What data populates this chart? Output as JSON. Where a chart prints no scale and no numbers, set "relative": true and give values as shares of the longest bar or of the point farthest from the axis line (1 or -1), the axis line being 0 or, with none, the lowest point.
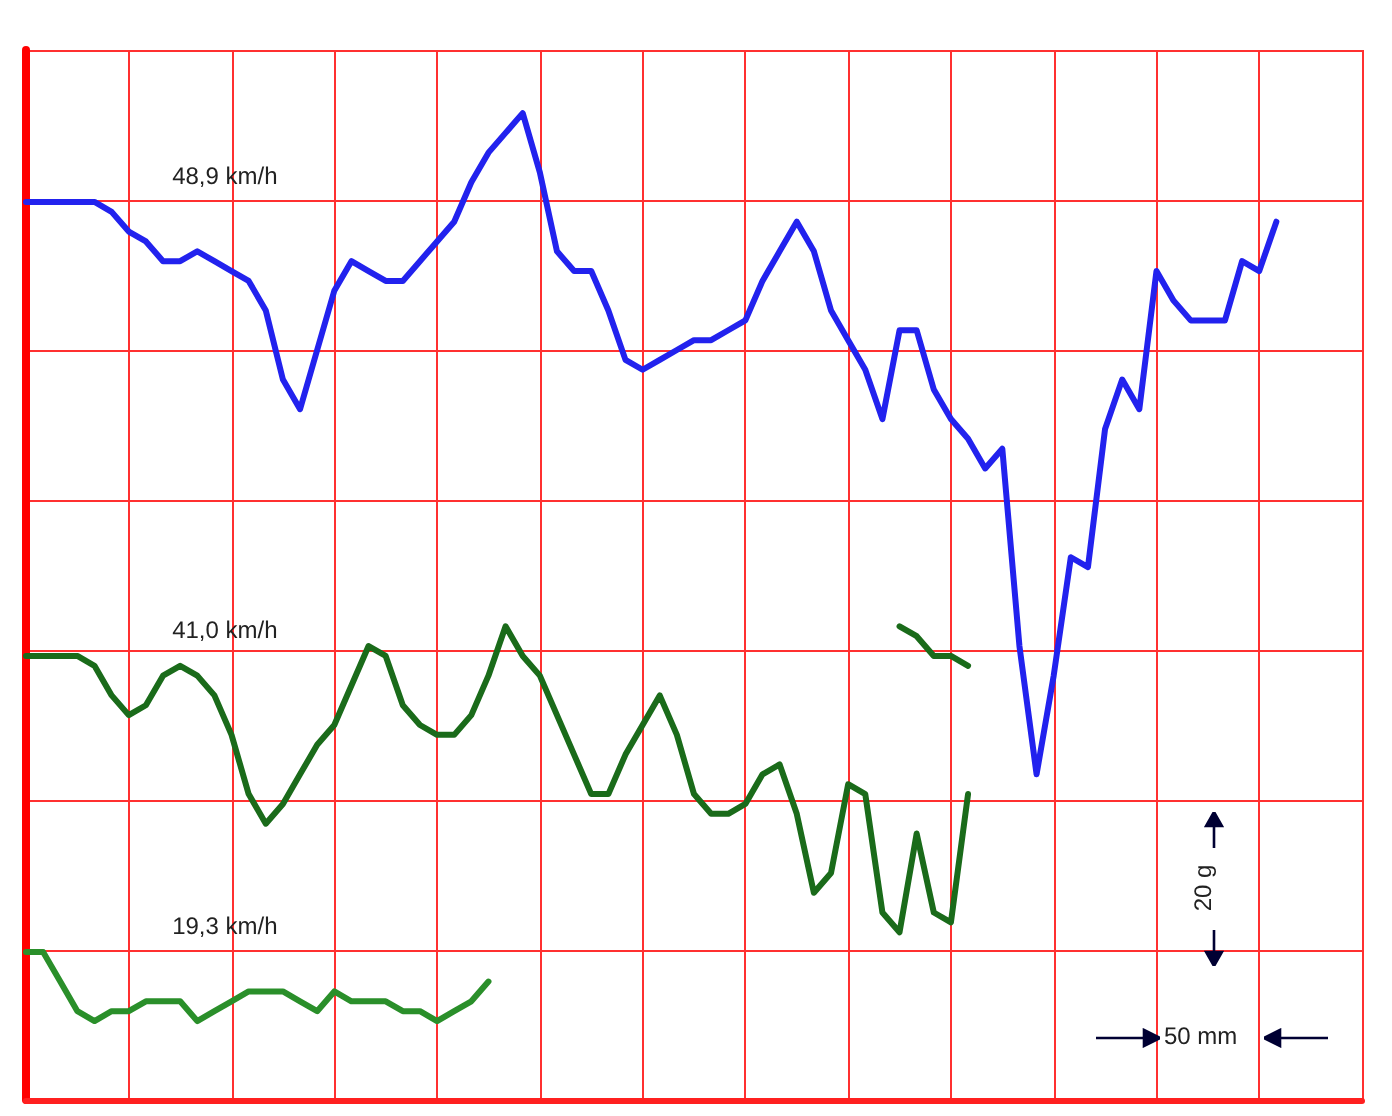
{
  "chart_data": {
    "type": "line",
    "relative": true,
    "grid": true,
    "legend": false,
    "marker": "none",
    "line_style": "solid",
    "annotations": [
      "20 g",
      "50 mm"
    ],
    "categories": [
      null,
      null,
      null,
      null,
      null,
      null,
      null,
      null,
      null,
      null,
      null,
      null,
      null,
      null,
      null,
      null,
      null,
      null,
      null,
      null,
      null,
      null,
      null,
      null,
      null,
      null,
      null,
      null,
      null,
      null,
      null,
      null,
      null,
      null,
      null,
      null,
      null,
      null,
      null,
      null,
      null,
      null,
      null,
      null,
      null,
      null,
      null,
      null,
      null,
      null,
      null,
      null,
      null,
      null,
      null,
      null,
      null,
      null,
      null,
      null,
      null,
      null,
      null,
      null,
      null,
      null,
      null,
      null,
      null,
      null,
      null,
      null,
      null,
      null,
      null,
      null,
      null,
      null,
      null
    ],
    "series": [
      {
        "name": "48,9 km/h",
        "color": "#2222ee",
        "values": [
          0.91,
          0.91,
          0.91,
          0.91,
          0.91,
          0.9,
          0.88,
          0.87,
          0.85,
          0.85,
          0.86,
          0.85,
          0.84,
          0.83,
          0.8,
          0.73,
          0.7,
          0.76,
          0.82,
          0.85,
          0.84,
          0.83,
          0.83,
          0.85,
          0.87,
          0.89,
          0.93,
          0.96,
          0.98,
          1,
          0.94,
          0.86,
          0.84,
          0.84,
          0.8,
          0.75,
          0.74,
          0.75,
          0.76,
          0.77,
          0.77,
          0.78,
          0.79,
          0.83,
          0.86,
          0.89,
          0.86,
          0.8,
          0.77,
          0.74,
          0.69,
          0.78,
          0.78,
          0.72,
          0.69,
          0.67,
          0.64,
          0.66,
          0.46,
          0.33,
          0.43,
          0.55,
          0.54,
          0.68,
          0.73,
          0.7,
          0.84,
          0.81,
          0.79,
          0.79,
          0.79,
          0.85,
          0.84,
          0.89,
          null,
          null,
          null,
          null,
          null
        ]
      },
      {
        "name": "41,0 km/h",
        "color": "#1a6b1a",
        "values": [
          0.45,
          0.45,
          0.45,
          0.45,
          0.44,
          0.41,
          0.39,
          0.4,
          0.43,
          0.44,
          0.43,
          0.41,
          0.37,
          0.31,
          0.28,
          0.3,
          0.33,
          0.36,
          0.38,
          0.42,
          0.46,
          0.45,
          0.4,
          0.38,
          0.37,
          0.37,
          0.39,
          0.43,
          0.48,
          0.45,
          0.43,
          0.39,
          0.35,
          0.31,
          0.31,
          0.35,
          0.38,
          0.41,
          0.37,
          0.31,
          0.29,
          0.29,
          0.3,
          0.33,
          0.34,
          0.29,
          0.21,
          0.23,
          0.32,
          0.31,
          0.19,
          0.17,
          0.27,
          0.19,
          0.18,
          0.31,
          null,
          null,
          null,
          null,
          null,
          null,
          null,
          null,
          null,
          null,
          null,
          null,
          null,
          null,
          null,
          null,
          null,
          null,
          null,
          null,
          null,
          null,
          null
        ]
      },
      {
        "color": "#1a6b1a",
        "values": [
          null,
          null,
          null,
          null,
          null,
          null,
          null,
          null,
          null,
          null,
          null,
          null,
          null,
          null,
          null,
          null,
          null,
          null,
          null,
          null,
          null,
          null,
          null,
          null,
          null,
          null,
          null,
          null,
          null,
          null,
          null,
          null,
          null,
          null,
          null,
          null,
          null,
          null,
          null,
          null,
          null,
          null,
          null,
          null,
          null,
          null,
          null,
          null,
          null,
          null,
          null,
          0.48,
          0.47,
          0.45,
          0.45,
          0.44,
          null,
          null,
          null,
          null,
          null,
          null,
          null,
          null,
          null,
          null,
          null,
          null,
          null,
          null,
          null,
          null,
          null,
          null,
          null,
          null,
          null,
          null,
          null
        ]
      },
      {
        "name": "19,3 km/h",
        "color": "#2a8f2a",
        "values": [
          0.15,
          0.15,
          0.12,
          0.09,
          0.08,
          0.09,
          0.09,
          0.1,
          0.1,
          0.1,
          0.08,
          0.09,
          0.1,
          0.11,
          0.11,
          0.11,
          0.1,
          0.09,
          0.11,
          0.1,
          0.1,
          0.1,
          0.09,
          0.09,
          0.08,
          0.09,
          0.1,
          0.12,
          null,
          null,
          null,
          null,
          null,
          null,
          null,
          null,
          null,
          null,
          null,
          null,
          null,
          null,
          null,
          null,
          null,
          null,
          null,
          null,
          null,
          null,
          null,
          null,
          null,
          null,
          null,
          null,
          null,
          null,
          null,
          null,
          null,
          null,
          null,
          null,
          null,
          null,
          null,
          null,
          null,
          null,
          null,
          null,
          null,
          null,
          null,
          null,
          null,
          null,
          null
        ]
      }
    ]
  }
}
